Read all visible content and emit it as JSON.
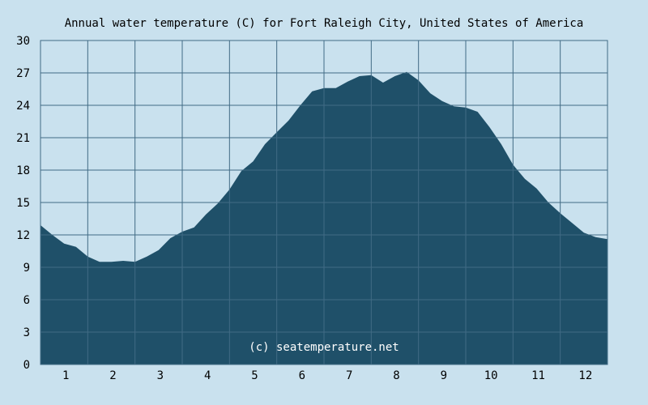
{
  "chart_data": {
    "type": "area",
    "title": "Annual water temperature (C) for Fort Raleigh City, United States of America",
    "watermark": "(c) seatemperature.net",
    "xlabel": "",
    "ylabel": "",
    "xlim": [
      0.5,
      12.5
    ],
    "ylim": [
      0,
      30
    ],
    "y_ticks": [
      0,
      3,
      6,
      9,
      12,
      15,
      18,
      21,
      24,
      27,
      30
    ],
    "x_ticks": [
      1,
      2,
      3,
      4,
      5,
      6,
      7,
      8,
      9,
      10,
      11,
      12
    ],
    "grid": true,
    "colors": {
      "fill": "#1f5069",
      "grid": "#416b85",
      "background": "#c9e1ee"
    },
    "x": [
      0.5,
      0.75,
      1.0,
      1.25,
      1.5,
      1.75,
      2.0,
      2.25,
      2.5,
      2.75,
      3.0,
      3.25,
      3.5,
      3.75,
      4.0,
      4.25,
      4.5,
      4.75,
      5.0,
      5.25,
      5.5,
      5.75,
      6.0,
      6.25,
      6.5,
      6.75,
      7.0,
      7.25,
      7.5,
      7.75,
      8.0,
      8.25,
      8.5,
      8.75,
      9.0,
      9.25,
      9.5,
      9.75,
      10.0,
      10.25,
      10.5,
      10.75,
      11.0,
      11.25,
      11.5,
      11.75,
      12.0,
      12.25,
      12.5
    ],
    "values": [
      12.9,
      12.0,
      11.2,
      10.9,
      10.0,
      9.5,
      9.5,
      9.6,
      9.5,
      10.0,
      10.6,
      11.7,
      12.3,
      12.7,
      13.9,
      14.9,
      16.2,
      17.9,
      18.8,
      20.4,
      21.5,
      22.6,
      24.0,
      25.3,
      25.6,
      25.6,
      26.2,
      26.7,
      26.8,
      26.1,
      26.7,
      27.1,
      26.3,
      25.1,
      24.4,
      23.9,
      23.8,
      23.4,
      22.0,
      20.4,
      18.5,
      17.2,
      16.3,
      15.0,
      14.0,
      13.1,
      12.2,
      11.8,
      11.6
    ]
  }
}
